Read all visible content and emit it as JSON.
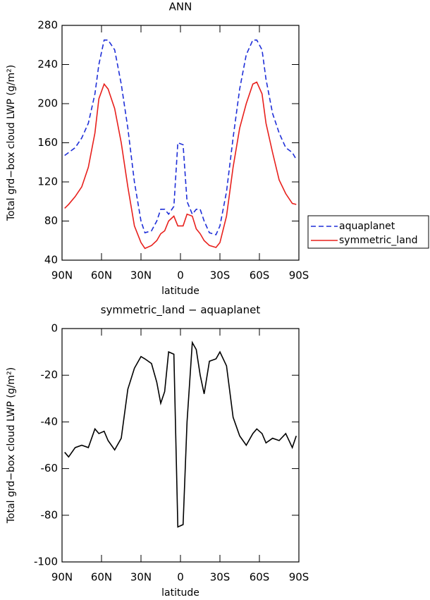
{
  "chart_data": [
    {
      "type": "line",
      "title": "ANN",
      "x_label": "latitude",
      "y_label": "Total grd−box cloud LWP (g/m²)",
      "x": [
        88,
        85,
        80,
        75,
        70,
        65,
        62,
        58,
        55,
        50,
        45,
        40,
        35,
        30,
        27,
        22,
        18,
        15,
        12,
        9,
        5,
        2,
        -2,
        -5,
        -9,
        -12,
        -15,
        -18,
        -22,
        -27,
        -30,
        -35,
        -40,
        -45,
        -50,
        -55,
        -58,
        -62,
        -65,
        -70,
        -75,
        -80,
        -85,
        -88
      ],
      "series": [
        {
          "name": "aquaplanet",
          "color": "#1f2fd8",
          "line_style": "dashed",
          "values": [
            147,
            150,
            155,
            165,
            180,
            210,
            240,
            265,
            265,
            255,
            220,
            175,
            120,
            80,
            68,
            70,
            80,
            92,
            92,
            87,
            95,
            160,
            158,
            100,
            87,
            92,
            92,
            80,
            68,
            66,
            75,
            110,
            165,
            215,
            250,
            265,
            265,
            255,
            225,
            190,
            170,
            155,
            150,
            143
          ]
        },
        {
          "name": "symmetric_land",
          "color": "#e8201c",
          "line_style": "solid",
          "values": [
            93,
            97,
            105,
            115,
            135,
            170,
            205,
            220,
            215,
            195,
            160,
            115,
            75,
            58,
            52,
            55,
            60,
            67,
            70,
            80,
            85,
            75,
            75,
            87,
            85,
            72,
            67,
            60,
            55,
            53,
            58,
            85,
            135,
            175,
            200,
            220,
            222,
            210,
            180,
            150,
            122,
            108,
            98,
            97
          ]
        }
      ],
      "xlim": [
        90,
        -90
      ],
      "xticks": [
        {
          "value": 90,
          "label": "90N"
        },
        {
          "value": 60,
          "label": "60N"
        },
        {
          "value": 30,
          "label": "30N"
        },
        0,
        {
          "value": -30,
          "label": "30S"
        },
        {
          "value": -60,
          "label": "60S"
        },
        {
          "value": -90,
          "label": "90S"
        }
      ],
      "ylim": [
        40,
        280
      ],
      "yticks": [
        40,
        80,
        120,
        160,
        200,
        240,
        280
      ],
      "legend": "right"
    },
    {
      "type": "line",
      "title": "symmetric_land − aquaplanet",
      "x_label": "latitude",
      "y_label": "Total grd−box cloud LWP (g/m²)",
      "x": [
        88,
        85,
        80,
        75,
        70,
        65,
        62,
        58,
        55,
        50,
        45,
        40,
        35,
        30,
        27,
        22,
        18,
        15,
        12,
        9,
        5,
        2,
        -2,
        -5,
        -9,
        -12,
        -15,
        -18,
        -22,
        -27,
        -30,
        -35,
        -40,
        -45,
        -50,
        -55,
        -58,
        -62,
        -65,
        -70,
        -75,
        -80,
        -85,
        -88
      ],
      "series": [
        {
          "color": "#000000",
          "line_style": "solid",
          "values": [
            -53,
            -55,
            -51,
            -50,
            -51,
            -43,
            -45,
            -44,
            -48,
            -52,
            -47,
            -26,
            -17,
            -12,
            -13,
            -15,
            -23,
            -32,
            -27,
            -10,
            -11,
            -85,
            -84,
            -40,
            -6,
            -9,
            -20,
            -28,
            -14,
            -13,
            -10,
            -16,
            -38,
            -46,
            -50,
            -45,
            -43,
            -45,
            -49,
            -47,
            -48,
            -45,
            -51,
            -46
          ]
        }
      ],
      "xlim": [
        90,
        -90
      ],
      "xticks": [
        {
          "value": 90,
          "label": "90N"
        },
        {
          "value": 60,
          "label": "60N"
        },
        {
          "value": 30,
          "label": "30N"
        },
        0,
        {
          "value": -30,
          "label": "30S"
        },
        {
          "value": -60,
          "label": "60S"
        },
        {
          "value": -90,
          "label": "90S"
        }
      ],
      "ylim": [
        -100,
        0
      ],
      "yticks": [
        -100,
        -80,
        -60,
        -40,
        -20,
        0
      ]
    }
  ]
}
